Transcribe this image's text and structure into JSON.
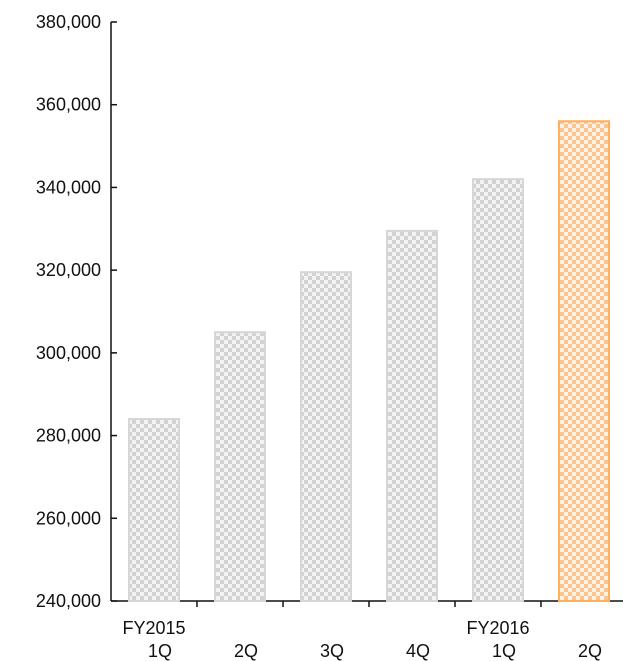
{
  "chart_data": {
    "type": "bar",
    "categories": [
      [
        "FY2015",
        "1Q"
      ],
      [
        "",
        "2Q"
      ],
      [
        "",
        "3Q"
      ],
      [
        "",
        "4Q"
      ],
      [
        "FY2016",
        "1Q"
      ],
      [
        "",
        "2Q"
      ]
    ],
    "values": [
      284000,
      305000,
      319500,
      329500,
      342000,
      356000
    ],
    "ylim": [
      240000,
      380000
    ],
    "yticks": [
      240000,
      260000,
      280000,
      300000,
      320000,
      340000,
      360000,
      380000
    ],
    "ytick_labels": [
      "240,000",
      "260,000",
      "280,000",
      "300,000",
      "320,000",
      "340,000",
      "360,000",
      "380,000"
    ],
    "title": "",
    "xlabel": "",
    "ylabel": "",
    "grid": false,
    "colors": {
      "default_bar": "#cfcfcf",
      "highlight_bar": "#ffc58a",
      "highlight_bar_border": "#ffae5c",
      "axis": "#111111",
      "text": "#111111"
    },
    "highlight_index": 5
  }
}
